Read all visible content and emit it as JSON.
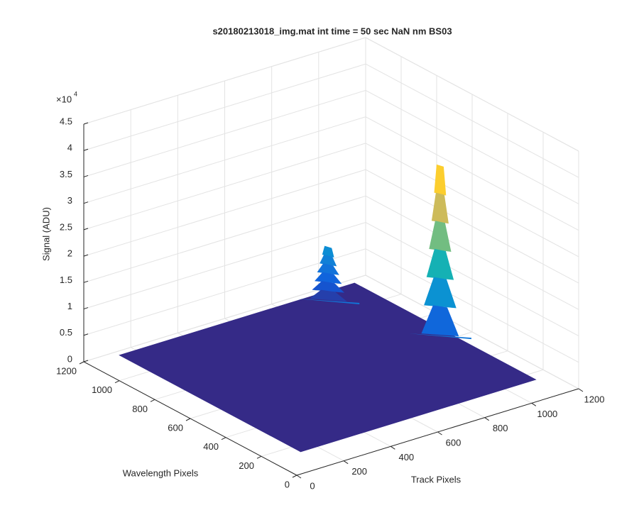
{
  "chart_data": {
    "type": "surface3d",
    "title": "s20180213018_img.mat int time = 50 sec  NaN nm BS03",
    "xlabel": "Track Pixels",
    "ylabel": "Wavelength Pixels",
    "zlabel": "Signal (ADU)",
    "zscale_base": "×10",
    "zscale_power": "4",
    "xlim": [
      0,
      1200
    ],
    "xticks": [
      0,
      200,
      400,
      600,
      800,
      1000,
      1200
    ],
    "ylim": [
      0,
      1200
    ],
    "yticks": [
      0,
      200,
      400,
      600,
      800,
      1000,
      1200
    ],
    "zlim": [
      0,
      45000
    ],
    "zticks": [
      {
        "value": 0,
        "label": "0"
      },
      {
        "value": 5000,
        "label": "0.5"
      },
      {
        "value": 10000,
        "label": "1"
      },
      {
        "value": 15000,
        "label": "1.5"
      },
      {
        "value": 20000,
        "label": "2"
      },
      {
        "value": 25000,
        "label": "2.5"
      },
      {
        "value": 30000,
        "label": "3"
      },
      {
        "value": 35000,
        "label": "3.5"
      },
      {
        "value": 40000,
        "label": "4"
      },
      {
        "value": 45000,
        "label": "4.5"
      }
    ],
    "grid": true,
    "surface": {
      "x_range": [
        130,
        1130
      ],
      "y_range": [
        150,
        1170
      ],
      "base": 0,
      "color": "#352a87"
    },
    "peaks": {
      "x": [
        980,
        1106
      ],
      "y": [
        1120,
        656
      ],
      "z": [
        10000,
        32000
      ]
    }
  }
}
